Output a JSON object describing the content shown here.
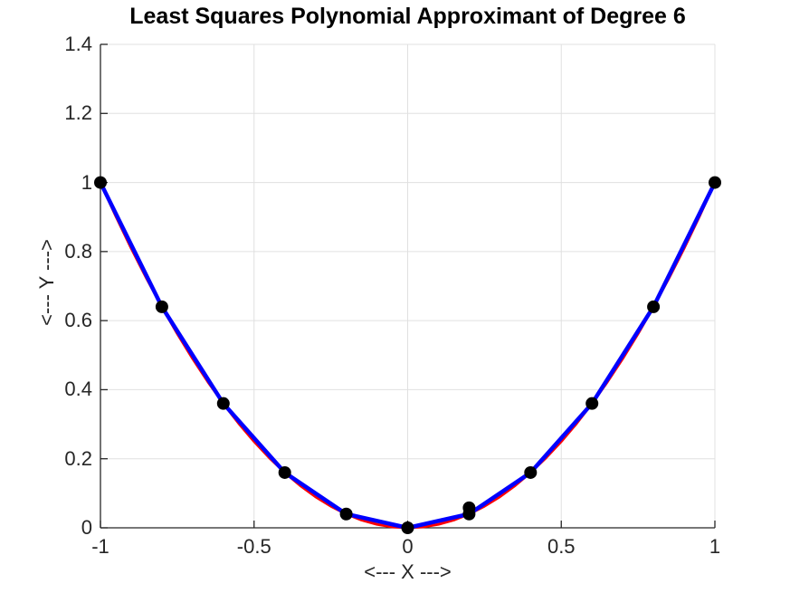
{
  "figure": {
    "background": "#ffffff"
  },
  "chart_data": {
    "type": "line",
    "title": "Least Squares Polynomial Approximant of Degree 6",
    "xlabel": "<--- X --->",
    "ylabel": "<--- Y --->",
    "xlim": [
      -1,
      1
    ],
    "ylim": [
      0,
      1.4
    ],
    "grid": true,
    "grid_color": "#e0e0e0",
    "axis_color": "#262626",
    "background_color": "#ffffff",
    "xticks": {
      "values": [
        -1,
        -0.5,
        0,
        0.5,
        1
      ],
      "labels": [
        "-1",
        "-0.5",
        "0",
        "0.5",
        "1"
      ]
    },
    "yticks": {
      "values": [
        0,
        0.2,
        0.4,
        0.6,
        0.8,
        1.0,
        1.2,
        1.4
      ],
      "labels": [
        "0",
        "0.2",
        "0.4",
        "0.6",
        "0.8",
        "1",
        "1.2",
        "1.4"
      ]
    },
    "series": [
      {
        "name": "degree-6-least-squares-fit-curve",
        "color": "#ff0000",
        "line_width": 3,
        "points": [
          [
            -1,
            1
          ],
          [
            -0.95,
            0.9025
          ],
          [
            -0.9,
            0.81
          ],
          [
            -0.85,
            0.7225
          ],
          [
            -0.8,
            0.64
          ],
          [
            -0.75,
            0.5625
          ],
          [
            -0.7,
            0.49
          ],
          [
            -0.65,
            0.4225
          ],
          [
            -0.6,
            0.36
          ],
          [
            -0.55,
            0.3025
          ],
          [
            -0.5,
            0.25
          ],
          [
            -0.45,
            0.2025
          ],
          [
            -0.4,
            0.16
          ],
          [
            -0.35,
            0.1225
          ],
          [
            -0.3,
            0.09
          ],
          [
            -0.25,
            0.0625
          ],
          [
            -0.2,
            0.04
          ],
          [
            -0.15,
            0.0225
          ],
          [
            -0.1,
            0.01
          ],
          [
            -0.05,
            0.0025
          ],
          [
            0,
            0
          ],
          [
            0.05,
            0.0025
          ],
          [
            0.1,
            0.01
          ],
          [
            0.15,
            0.0225
          ],
          [
            0.2,
            0.04
          ],
          [
            0.25,
            0.0625
          ],
          [
            0.3,
            0.09
          ],
          [
            0.35,
            0.1225
          ],
          [
            0.4,
            0.16
          ],
          [
            0.45,
            0.2025
          ],
          [
            0.5,
            0.25
          ],
          [
            0.55,
            0.3025
          ],
          [
            0.6,
            0.36
          ],
          [
            0.65,
            0.4225
          ],
          [
            0.7,
            0.49
          ],
          [
            0.75,
            0.5625
          ],
          [
            0.8,
            0.64
          ],
          [
            0.85,
            0.7225
          ],
          [
            0.9,
            0.81
          ],
          [
            0.95,
            0.9025
          ],
          [
            1,
            1
          ]
        ]
      },
      {
        "name": "sample-data-polyline",
        "color": "#0000ff",
        "line_width": 4.5,
        "points": [
          [
            -1,
            1
          ],
          [
            -0.8,
            0.64
          ],
          [
            -0.6,
            0.36
          ],
          [
            -0.4,
            0.16
          ],
          [
            -0.2,
            0.04
          ],
          [
            0,
            0
          ],
          [
            0.2,
            0.04
          ],
          [
            0.4,
            0.16
          ],
          [
            0.6,
            0.36
          ],
          [
            0.8,
            0.64
          ],
          [
            1,
            1
          ]
        ]
      }
    ],
    "markers": {
      "name": "data-points",
      "shape": "circle",
      "color": "#000000",
      "radius": 7,
      "points": [
        [
          -1,
          1
        ],
        [
          -0.8,
          0.64
        ],
        [
          -0.6,
          0.36
        ],
        [
          -0.4,
          0.16
        ],
        [
          -0.2,
          0.04
        ],
        [
          0,
          0
        ],
        [
          0.2,
          0.04
        ],
        [
          0.2,
          0.058
        ],
        [
          0.4,
          0.16
        ],
        [
          0.6,
          0.36
        ],
        [
          0.8,
          0.64
        ],
        [
          1,
          1
        ]
      ]
    }
  }
}
